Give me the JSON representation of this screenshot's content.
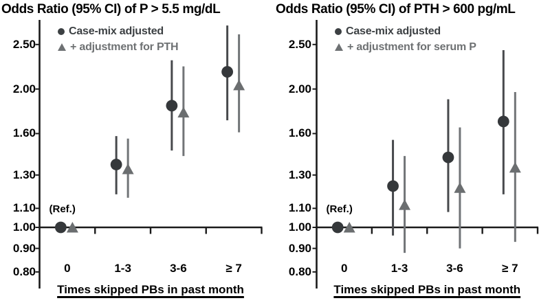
{
  "colors": {
    "background": "#ffffff",
    "axis": "#1a1a1a",
    "text": "#000000",
    "circle_marker": "#35383b",
    "circle_bar": "#47494c",
    "triangle_marker": "#6b6e70",
    "triangle_bar": "#717477",
    "legend_circle_text": "#3c4043",
    "legend_triangle_text": "#6e7173"
  },
  "chart_data": [
    {
      "type": "scatter",
      "subtype": "forest-plot-odds-ratio",
      "title": "Odds Ratio (95% CI) of P > 5.5 mg/dL",
      "xlabel": "Times skipped PBs in past month",
      "ylabel": "Odds Ratio",
      "yscale": "log",
      "ylim": [
        0.78,
        2.85
      ],
      "grid": false,
      "legend_position": "top-left-inside",
      "yticks": [
        0.8,
        0.9,
        1.0,
        1.1,
        1.3,
        1.6,
        2.0,
        2.5
      ],
      "ytick_labels": [
        "0.80",
        "0.90",
        "1.00",
        "1.10",
        "1.30",
        "1.60",
        "2.00",
        "2.50"
      ],
      "reference_line": 1.0,
      "ref_label": "(Ref.)",
      "categories": [
        "0",
        "1-3",
        "3-6",
        "≥ 7"
      ],
      "legend": [
        {
          "marker": "circle",
          "label": "Case-mix adjusted"
        },
        {
          "marker": "triangle",
          "label": "+ adjustment for PTH"
        }
      ],
      "series": [
        {
          "name": "Case-mix adjusted",
          "marker": "circle",
          "values": [
            {
              "category": "0",
              "or": 1.0,
              "ci_low": null,
              "ci_high": null,
              "note": "reference"
            },
            {
              "category": "1-3",
              "or": 1.37,
              "ci_low": 1.18,
              "ci_high": 1.58
            },
            {
              "category": "3-6",
              "or": 1.84,
              "ci_low": 1.47,
              "ci_high": 2.31
            },
            {
              "category": "≥ 7",
              "or": 2.18,
              "ci_low": 1.71,
              "ci_high": 2.75
            }
          ]
        },
        {
          "name": "+ adjustment for PTH",
          "marker": "triangle",
          "values": [
            {
              "category": "0",
              "or": 1.0,
              "ci_low": null,
              "ci_high": null,
              "note": "reference"
            },
            {
              "category": "1-3",
              "or": 1.34,
              "ci_low": 1.16,
              "ci_high": 1.56
            },
            {
              "category": "3-6",
              "or": 1.78,
              "ci_low": 1.43,
              "ci_high": 2.24
            },
            {
              "category": "≥ 7",
              "or": 2.04,
              "ci_low": 1.61,
              "ci_high": 2.63
            }
          ]
        }
      ]
    },
    {
      "type": "scatter",
      "subtype": "forest-plot-odds-ratio",
      "title": "Odds Ratio (95% CI) of PTH > 600 pg/mL",
      "xlabel": "Times skipped PBs in past month",
      "ylabel": "Odds Ratio",
      "yscale": "log",
      "ylim": [
        0.78,
        2.85
      ],
      "grid": false,
      "legend_position": "top-left-inside",
      "yticks": [
        0.8,
        0.9,
        1.0,
        1.1,
        1.3,
        1.6,
        2.0,
        2.5
      ],
      "ytick_labels": [
        "0.80",
        "0.90",
        "1.00",
        "1.10",
        "1.30",
        "1.60",
        "2.00",
        "2.50"
      ],
      "reference_line": 1.0,
      "ref_label": "(Ref.)",
      "categories": [
        "0",
        "1-3",
        "3-6",
        "≥ 7"
      ],
      "legend": [
        {
          "marker": "circle",
          "label": "Case-mix adjusted"
        },
        {
          "marker": "triangle",
          "label": "+ adjustment for serum P"
        }
      ],
      "series": [
        {
          "name": "Case-mix adjusted",
          "marker": "circle",
          "values": [
            {
              "category": "0",
              "or": 1.0,
              "ci_low": null,
              "ci_high": null,
              "note": "reference"
            },
            {
              "category": "1-3",
              "or": 1.23,
              "ci_low": 0.96,
              "ci_high": 1.55
            },
            {
              "category": "3-6",
              "or": 1.42,
              "ci_low": 1.08,
              "ci_high": 1.9
            },
            {
              "category": "≥ 7",
              "or": 1.7,
              "ci_low": 1.18,
              "ci_high": 2.43
            }
          ]
        },
        {
          "name": "+ adjustment for serum P",
          "marker": "triangle",
          "values": [
            {
              "category": "0",
              "or": 1.0,
              "ci_low": null,
              "ci_high": null,
              "note": "reference"
            },
            {
              "category": "1-3",
              "or": 1.12,
              "ci_low": 0.88,
              "ci_high": 1.43
            },
            {
              "category": "3-6",
              "or": 1.22,
              "ci_low": 0.9,
              "ci_high": 1.65
            },
            {
              "category": "≥ 7",
              "or": 1.35,
              "ci_low": 0.93,
              "ci_high": 1.97
            }
          ]
        }
      ]
    }
  ]
}
